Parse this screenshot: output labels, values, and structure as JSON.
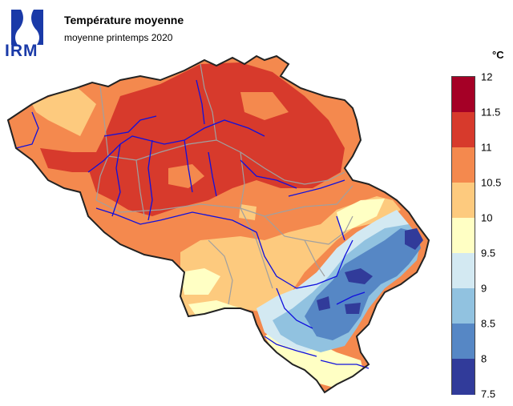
{
  "header": {
    "logo_text": "IRM",
    "title": "Température moyenne",
    "subtitle": "moyenne printemps 2020"
  },
  "legend": {
    "unit": "°C",
    "labels": [
      "12",
      "11.5",
      "11",
      "10.5",
      "10",
      "9.5",
      "9",
      "8.5",
      "8",
      "7.5"
    ],
    "colors": [
      "#a50026",
      "#d73a2c",
      "#f4894e",
      "#fdca7e",
      "#ffffc4",
      "#d3e9f2",
      "#91c2e0",
      "#5687c5",
      "#313b9a"
    ]
  },
  "map_colors": {
    "very_warm": "#d73a2c",
    "warm": "#f4894e",
    "mild": "#fdca7e",
    "neutral": "#ffffc4",
    "cool_light": "#d3e9f2",
    "cool": "#91c2e0",
    "cold": "#5687c5",
    "coldest": "#313b9a",
    "rivers": "#1010dd",
    "provinces": "#a0a0a0",
    "border": "#222222"
  }
}
